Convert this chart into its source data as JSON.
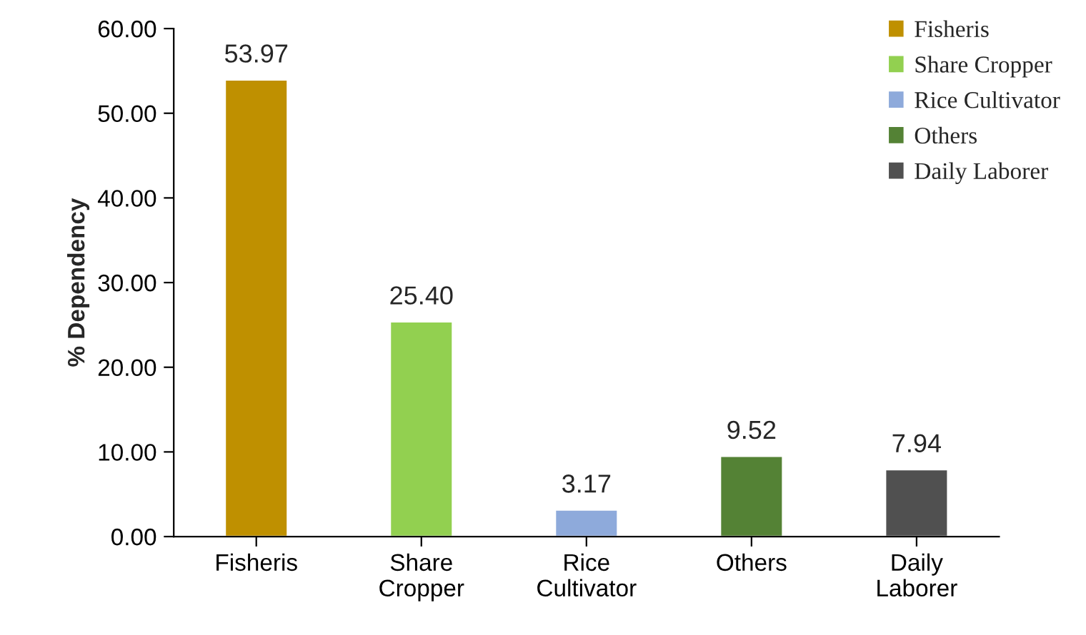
{
  "chart_data": {
    "type": "bar",
    "ylabel": "% Dependency",
    "categories": [
      "Fisheris",
      "Share Cropper",
      "Rice Cultivator",
      "Others",
      "Daily Laborer"
    ],
    "series": [
      {
        "name": "Fisheris",
        "color": "#bf9000",
        "values": [
          53.97,
          null,
          null,
          null,
          null
        ],
        "value_labels": [
          "53.97",
          null,
          null,
          null,
          null
        ]
      },
      {
        "name": "Share Cropper",
        "color": "#92d050",
        "values": [
          null,
          25.4,
          null,
          null,
          null
        ],
        "value_labels": [
          null,
          "25.40",
          null,
          null,
          null
        ]
      },
      {
        "name": "Rice Cultivator",
        "color": "#8eaadb",
        "values": [
          null,
          null,
          3.17,
          null,
          null
        ],
        "value_labels": [
          null,
          null,
          "3.17",
          null,
          null
        ]
      },
      {
        "name": "Others",
        "color": "#548235",
        "values": [
          null,
          null,
          null,
          9.52,
          null
        ],
        "value_labels": [
          null,
          null,
          null,
          "9.52",
          null
        ]
      },
      {
        "name": "Daily Laborer",
        "color": "#505050",
        "values": [
          null,
          null,
          null,
          null,
          7.94
        ],
        "value_labels": [
          null,
          null,
          null,
          null,
          "7.94"
        ]
      }
    ],
    "ylim": [
      0,
      60
    ],
    "yticks": [
      {
        "value": 0,
        "label": "0.00"
      },
      {
        "value": 10,
        "label": "10.00"
      },
      {
        "value": 20,
        "label": "20.00"
      },
      {
        "value": 30,
        "label": "30.00"
      },
      {
        "value": 40,
        "label": "40.00"
      },
      {
        "value": 50,
        "label": "50.00"
      },
      {
        "value": 60,
        "label": "60.00"
      }
    ],
    "legend": "top right",
    "grid": false
  }
}
